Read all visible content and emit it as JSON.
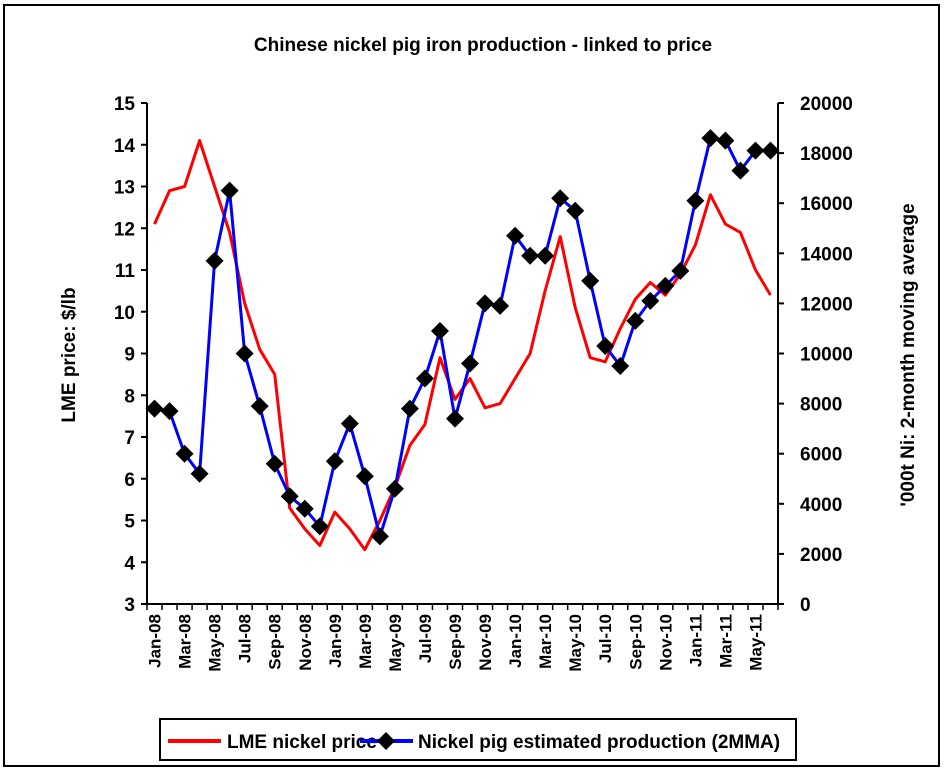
{
  "chart_data": {
    "type": "line",
    "title": "Chinese nickel pig iron production - linked to price",
    "ylabel_left": "LME price: $/lb",
    "ylabel_right": "'000t Ni: 2-month moving average",
    "ylim_left": [
      3,
      15
    ],
    "yticks_left": [
      "3",
      "4",
      "5",
      "6",
      "7",
      "8",
      "9",
      "10",
      "11",
      "12",
      "13",
      "14",
      "15"
    ],
    "ylim_right": [
      0,
      20000
    ],
    "yticks_right": [
      "0",
      "2000",
      "4000",
      "6000",
      "8000",
      "10000",
      "12000",
      "14000",
      "16000",
      "18000",
      "20000"
    ],
    "x_tick_labels": [
      "Jan-08",
      "Mar-08",
      "May-08",
      "Jul-08",
      "Sep-08",
      "Nov-08",
      "Jan-09",
      "Mar-09",
      "May-09",
      "Jul-09",
      "Sep-09",
      "Nov-09",
      "Jan-10",
      "Mar-10",
      "May-10",
      "Jul-10",
      "Sep-10",
      "Nov-10",
      "Jan-11",
      "Mar-11",
      "May-11"
    ],
    "x": [
      "Jan-08",
      "Feb-08",
      "Mar-08",
      "Apr-08",
      "May-08",
      "Jun-08",
      "Jul-08",
      "Aug-08",
      "Sep-08",
      "Oct-08",
      "Nov-08",
      "Dec-08",
      "Jan-09",
      "Feb-09",
      "Mar-09",
      "Apr-09",
      "May-09",
      "Jun-09",
      "Jul-09",
      "Aug-09",
      "Sep-09",
      "Oct-09",
      "Nov-09",
      "Dec-09",
      "Jan-10",
      "Feb-10",
      "Mar-10",
      "Apr-10",
      "May-10",
      "Jun-10",
      "Jul-10",
      "Aug-10",
      "Sep-10",
      "Oct-10",
      "Nov-10",
      "Dec-10",
      "Jan-11",
      "Feb-11",
      "Mar-11",
      "Apr-11",
      "May-11",
      "Jun-11"
    ],
    "series": [
      {
        "name": "LME nickel price",
        "axis": "left",
        "color": "#ff0000",
        "marker": "none",
        "values": [
          12.1,
          12.9,
          13.0,
          14.1,
          13.0,
          11.9,
          10.2,
          9.1,
          8.5,
          5.3,
          4.8,
          4.4,
          5.2,
          4.8,
          4.3,
          5.0,
          5.8,
          6.8,
          7.3,
          8.9,
          7.9,
          8.4,
          7.7,
          7.8,
          8.4,
          9.0,
          10.5,
          11.8,
          10.1,
          8.9,
          8.8,
          9.6,
          10.3,
          10.7,
          10.4,
          10.9,
          11.6,
          12.8,
          12.1,
          11.9,
          11.0,
          10.4
        ]
      },
      {
        "name": "Nickel pig estimated production (2MMA)",
        "axis": "right",
        "color": "#0000ff",
        "marker": "diamond",
        "values": [
          7800,
          7700,
          6000,
          5200,
          13700,
          16500,
          10000,
          7900,
          5600,
          4300,
          3800,
          3100,
          5700,
          7200,
          5100,
          2700,
          4600,
          7800,
          9000,
          10900,
          7400,
          9600,
          12000,
          11900,
          14700,
          13900,
          13900,
          16200,
          15700,
          12900,
          10300,
          9500,
          11300,
          12100,
          12700,
          13300,
          16100,
          18600,
          18500,
          17300,
          18100,
          18100
        ]
      }
    ],
    "legend_position": "bottom",
    "grid": false
  }
}
